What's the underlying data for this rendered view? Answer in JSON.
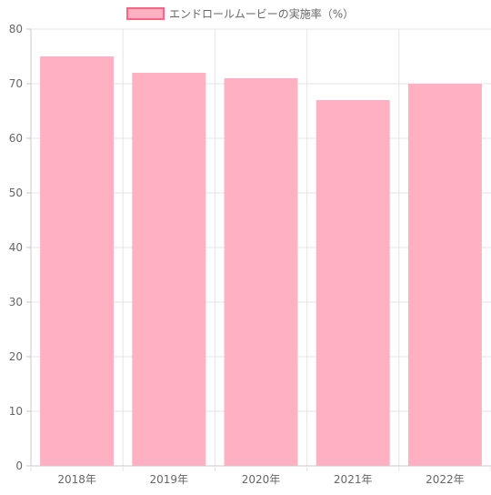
{
  "chart_data": {
    "type": "bar",
    "categories": [
      "2018年",
      "2019年",
      "2020年",
      "2021年",
      "2022年"
    ],
    "series": [
      {
        "name": "エンドロールムービーの実施率（%）",
        "values": [
          75,
          72,
          71,
          67,
          70
        ]
      }
    ],
    "ylim": [
      0,
      80
    ],
    "yticks": [
      0,
      10,
      20,
      30,
      40,
      50,
      60,
      70,
      80
    ],
    "grid": true,
    "legend_position": "top"
  },
  "colors": {
    "bar_fill": "#ffb1c1",
    "bar_stroke": "#ff6384",
    "grid": "#e5e5e5",
    "axis": "#c8c8c8",
    "text": "#666666"
  }
}
